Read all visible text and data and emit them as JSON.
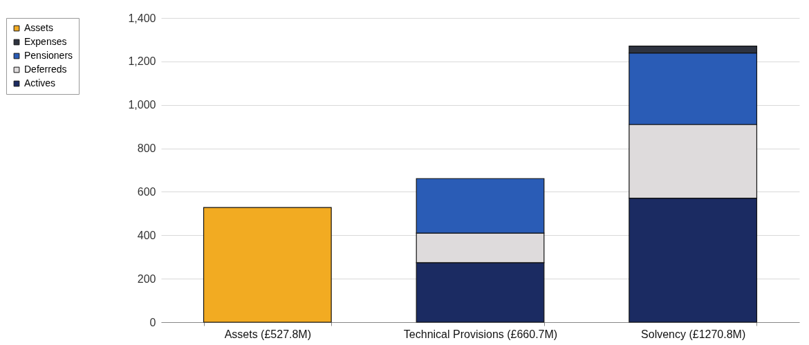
{
  "chart_data": {
    "type": "bar",
    "stacked": true,
    "categories": [
      "Assets (£527.8M)",
      "Technical Provisions (£660.7M)",
      "Solvency (£1270.8M)"
    ],
    "series": [
      {
        "name": "Actives",
        "color": "#1b2b62",
        "values": [
          null,
          274,
          571
        ]
      },
      {
        "name": "Deferreds",
        "color": "#dedbdc",
        "values": [
          null,
          136,
          339
        ]
      },
      {
        "name": "Pensioners",
        "color": "#2a5cb6",
        "values": [
          null,
          251,
          329
        ]
      },
      {
        "name": "Expenses",
        "color": "#2e3340",
        "values": [
          null,
          null,
          32
        ]
      },
      {
        "name": "Assets",
        "color": "#f2ab22",
        "values": [
          528,
          null,
          null
        ]
      }
    ],
    "ylim": [
      0,
      1400
    ],
    "yticks": [
      0,
      200,
      400,
      600,
      800,
      {
        "value": 1000,
        "label": "1,000"
      },
      {
        "value": 1200,
        "label": "1,200"
      },
      {
        "value": 1400,
        "label": "1,400"
      }
    ],
    "grid": "y",
    "legend": "left"
  }
}
